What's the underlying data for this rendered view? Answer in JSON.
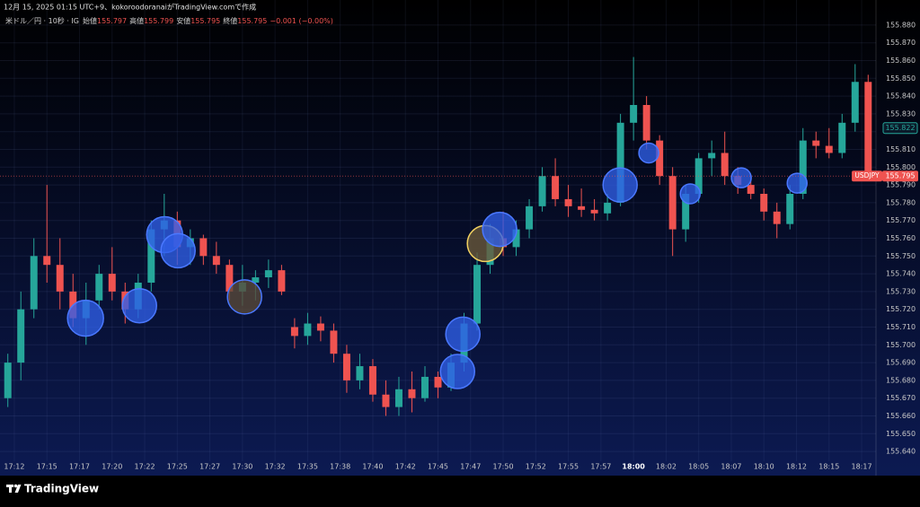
{
  "header": {
    "made_by": "12月 15, 2025 01:15 UTC+9、kokoroodoranaiがTradingView.comで作成",
    "symbol": "米ドル／円 · 10秒 · IG",
    "open_label": "始値",
    "open": "155.797",
    "high_label": "高値",
    "high": "155.799",
    "low_label": "安値",
    "low": "155.795",
    "close_label": "終値",
    "close": "155.795",
    "change": "−0.001 (−0.00%)",
    "brand": "TradingView"
  },
  "chart_data": {
    "type": "candlestick",
    "up_color": "#26a69a",
    "down_color": "#ef5350",
    "grid": true,
    "x": [
      1032,
      1033,
      1034,
      1035,
      1036,
      1037,
      1038,
      1039,
      1040,
      1041,
      1042,
      1043,
      1044,
      1045,
      1046,
      1047,
      1048,
      1049,
      1050,
      1051,
      1052,
      1053,
      1054,
      1055,
      1056,
      1057,
      1058,
      1059,
      1060,
      1061,
      1062,
      1063,
      1064,
      1065,
      1066,
      1067,
      1068,
      1069,
      1070,
      1071,
      1072,
      1073,
      1074,
      1075,
      1076,
      1077,
      1078,
      1079,
      1080,
      1081,
      1082,
      1083,
      1084,
      1085,
      1086,
      1087,
      1088,
      1089,
      1090,
      1091,
      1092,
      1093,
      1094,
      1095,
      1096,
      1097,
      1098
    ],
    "open": [
      155.67,
      155.69,
      155.72,
      155.75,
      155.745,
      155.73,
      155.715,
      155.725,
      155.74,
      155.73,
      155.72,
      155.735,
      155.765,
      155.77,
      155.755,
      155.76,
      155.75,
      155.745,
      155.73,
      155.735,
      155.738,
      155.742,
      155.71,
      155.705,
      155.712,
      155.708,
      155.695,
      155.68,
      155.688,
      155.672,
      155.665,
      155.675,
      155.67,
      155.682,
      155.676,
      155.69,
      155.712,
      155.745,
      155.76,
      155.755,
      155.765,
      155.778,
      155.795,
      155.782,
      155.778,
      155.776,
      155.774,
      155.78,
      155.825,
      155.835,
      155.815,
      155.795,
      155.765,
      155.785,
      155.805,
      155.808,
      155.795,
      155.79,
      155.785,
      155.775,
      155.768,
      155.785,
      155.815,
      155.812,
      155.808,
      155.825,
      155.848
    ],
    "high": [
      155.695,
      155.73,
      155.76,
      155.79,
      155.76,
      155.74,
      155.735,
      155.745,
      155.755,
      155.735,
      155.74,
      155.77,
      155.785,
      155.775,
      155.765,
      155.762,
      155.758,
      155.748,
      155.745,
      155.742,
      155.748,
      155.745,
      155.715,
      155.718,
      155.716,
      155.712,
      155.7,
      155.695,
      155.692,
      155.68,
      155.682,
      155.685,
      155.688,
      155.685,
      155.695,
      155.718,
      155.752,
      155.768,
      155.775,
      155.77,
      155.782,
      155.8,
      155.805,
      155.79,
      155.788,
      155.782,
      155.785,
      155.83,
      155.862,
      155.84,
      155.818,
      155.8,
      155.79,
      155.808,
      155.815,
      155.82,
      155.8,
      155.795,
      155.788,
      155.78,
      155.79,
      155.822,
      155.82,
      155.822,
      155.83,
      155.858,
      155.852
    ],
    "low": [
      155.665,
      155.68,
      155.715,
      155.735,
      155.72,
      155.71,
      155.7,
      155.72,
      155.725,
      155.712,
      155.715,
      155.73,
      155.75,
      155.745,
      155.745,
      155.745,
      155.74,
      155.725,
      155.722,
      155.725,
      155.732,
      155.728,
      155.698,
      155.7,
      155.702,
      155.69,
      155.673,
      155.675,
      155.668,
      155.66,
      155.66,
      155.662,
      155.668,
      155.67,
      155.674,
      155.685,
      155.708,
      155.74,
      155.75,
      155.75,
      155.76,
      155.775,
      155.778,
      155.772,
      155.772,
      155.77,
      155.77,
      155.778,
      155.815,
      155.81,
      155.79,
      155.75,
      155.758,
      155.78,
      155.795,
      155.79,
      155.785,
      155.782,
      155.77,
      155.76,
      155.765,
      155.782,
      155.805,
      155.805,
      155.805,
      155.82,
      155.793
    ],
    "close": [
      155.69,
      155.72,
      155.75,
      155.745,
      155.73,
      155.715,
      155.725,
      155.74,
      155.73,
      155.72,
      155.735,
      155.765,
      155.77,
      155.755,
      155.76,
      155.75,
      155.745,
      155.73,
      155.735,
      155.738,
      155.742,
      155.73,
      155.705,
      155.712,
      155.708,
      155.695,
      155.68,
      155.688,
      155.672,
      155.665,
      155.675,
      155.67,
      155.682,
      155.676,
      155.69,
      155.712,
      155.745,
      155.76,
      155.755,
      155.765,
      155.778,
      155.795,
      155.782,
      155.778,
      155.776,
      155.774,
      155.78,
      155.825,
      155.835,
      155.815,
      155.795,
      155.765,
      155.785,
      155.805,
      155.808,
      155.795,
      155.79,
      155.785,
      155.775,
      155.768,
      155.785,
      155.815,
      155.812,
      155.808,
      155.825,
      155.848,
      155.795
    ],
    "markers": [
      {
        "x": 1037.96,
        "y": 155.715,
        "size": 20,
        "color": "#2f5fe8",
        "border": "#4a78ff"
      },
      {
        "x": 1042.1,
        "y": 155.722,
        "size": 19,
        "color": "#2f5fe8",
        "border": "#4a78ff"
      },
      {
        "x": 1044.03,
        "y": 155.762,
        "size": 20,
        "color": "#2f5fe8",
        "border": "#4a78ff"
      },
      {
        "x": 1045.06,
        "y": 155.753,
        "size": 19,
        "color": "#2f5fe8",
        "border": "#4a78ff"
      },
      {
        "x": 1050.16,
        "y": 155.727,
        "size": 19,
        "color": "#5a4a3a",
        "border": "#4a78ff"
      },
      {
        "x": 1066.91,
        "y": 155.706,
        "size": 19,
        "color": "#2f5fe8",
        "border": "#4a78ff"
      },
      {
        "x": 1066.5,
        "y": 155.685,
        "size": 19,
        "color": "#2f5fe8",
        "border": "#4a78ff"
      },
      {
        "x": 1068.63,
        "y": 155.757,
        "size": 20,
        "color": "#6a5a3a",
        "border": "#f0d060"
      },
      {
        "x": 1069.73,
        "y": 155.765,
        "size": 19,
        "color": "#2f5fe8",
        "border": "#4a78ff"
      },
      {
        "x": 1078.97,
        "y": 155.79,
        "size": 19,
        "color": "#2f5fe8",
        "border": "#4a78ff"
      },
      {
        "x": 1081.17,
        "y": 155.808,
        "size": 11,
        "color": "#2f5fe8",
        "border": "#4a78ff"
      },
      {
        "x": 1084.35,
        "y": 155.785,
        "size": 11,
        "color": "#2f5fe8",
        "border": "#4a78ff"
      },
      {
        "x": 1088.27,
        "y": 155.794,
        "size": 11,
        "color": "#2f5fe8",
        "border": "#4a78ff"
      },
      {
        "x": 1092.55,
        "y": 155.791,
        "size": 11,
        "color": "#2f5fe8",
        "border": "#4a78ff"
      }
    ],
    "last_price": 155.795,
    "symbol_tag": "USDJPY",
    "marked_price": 155.822,
    "xlim": [
      1031.4,
      1098.6
    ],
    "ylim": [
      155.6355,
      155.885
    ],
    "xticks": [
      {
        "value": 1032.5,
        "label": "17:12"
      },
      {
        "value": 1035,
        "label": "17:15"
      },
      {
        "value": 1037.5,
        "label": "17:17"
      },
      {
        "value": 1040,
        "label": "17:20"
      },
      {
        "value": 1042.5,
        "label": "17:22"
      },
      {
        "value": 1045,
        "label": "17:25"
      },
      {
        "value": 1047.5,
        "label": "17:27"
      },
      {
        "value": 1050,
        "label": "17:30"
      },
      {
        "value": 1052.5,
        "label": "17:32"
      },
      {
        "value": 1055,
        "label": "17:35"
      },
      {
        "value": 1057.5,
        "label": "17:38"
      },
      {
        "value": 1060,
        "label": "17:40"
      },
      {
        "value": 1062.5,
        "label": "17:42"
      },
      {
        "value": 1065,
        "label": "17:45"
      },
      {
        "value": 1067.5,
        "label": "17:47"
      },
      {
        "value": 1070,
        "label": "17:50"
      },
      {
        "value": 1072.5,
        "label": "17:52"
      },
      {
        "value": 1075,
        "label": "17:55"
      },
      {
        "value": 1077.5,
        "label": "17:57"
      },
      {
        "value": 1080,
        "label": "18:00"
      },
      {
        "value": 1082.5,
        "label": "18:02"
      },
      {
        "value": 1085,
        "label": "18:05"
      },
      {
        "value": 1087.5,
        "label": "18:07"
      },
      {
        "value": 1090,
        "label": "18:10"
      },
      {
        "value": 1092.5,
        "label": "18:12"
      },
      {
        "value": 1095,
        "label": "18:15"
      },
      {
        "value": 1097.5,
        "label": "18:17"
      }
    ],
    "emphasized_xtick": 1080,
    "yticks": [
      {
        "value": 155.64,
        "label": "155.640"
      },
      {
        "value": 155.65,
        "label": "155.650"
      },
      {
        "value": 155.66,
        "label": "155.660"
      },
      {
        "value": 155.67,
        "label": "155.670"
      },
      {
        "value": 155.68,
        "label": "155.680"
      },
      {
        "value": 155.69,
        "label": "155.690"
      },
      {
        "value": 155.7,
        "label": "155.700"
      },
      {
        "value": 155.71,
        "label": "155.710"
      },
      {
        "value": 155.72,
        "label": "155.720"
      },
      {
        "value": 155.73,
        "label": "155.730"
      },
      {
        "value": 155.74,
        "label": "155.740"
      },
      {
        "value": 155.75,
        "label": "155.750"
      },
      {
        "value": 155.76,
        "label": "155.760"
      },
      {
        "value": 155.77,
        "label": "155.770"
      },
      {
        "value": 155.78,
        "label": "155.780"
      },
      {
        "value": 155.79,
        "label": "155.790"
      },
      {
        "value": 155.8,
        "label": "155.800"
      },
      {
        "value": 155.81,
        "label": "155.810"
      },
      {
        "value": 155.82,
        "label": "155.820"
      },
      {
        "value": 155.83,
        "label": "155.830"
      },
      {
        "value": 155.84,
        "label": "155.840"
      },
      {
        "value": 155.85,
        "label": "155.850"
      },
      {
        "value": 155.86,
        "label": "155.860"
      },
      {
        "value": 155.87,
        "label": "155.870"
      },
      {
        "value": 155.88,
        "label": "155.880"
      }
    ]
  }
}
